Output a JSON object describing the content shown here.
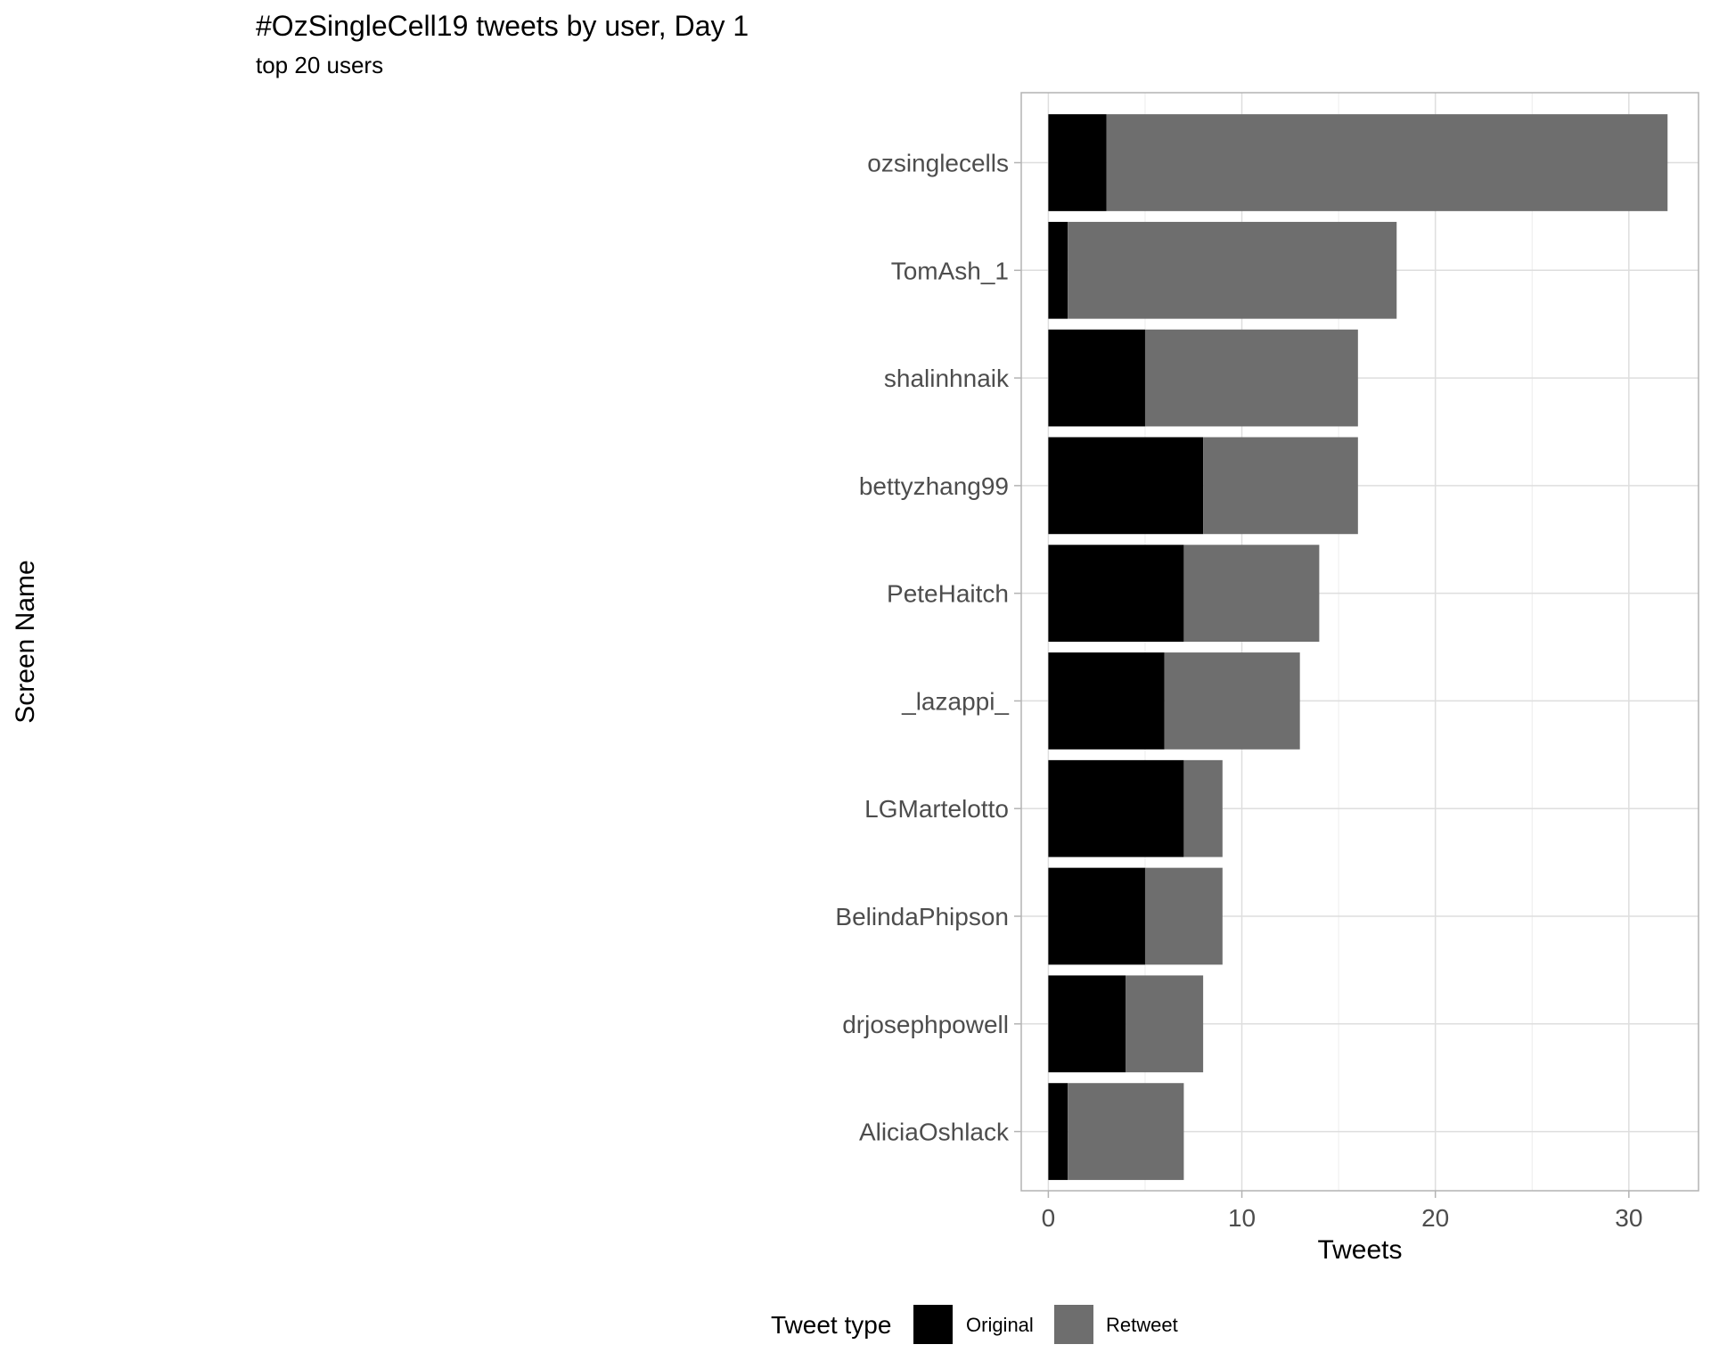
{
  "chart_data": {
    "type": "bar",
    "orientation": "horizontal",
    "stacked": true,
    "title": "#OzSingleCell19 tweets by user, Day 1",
    "subtitle": "top 20 users",
    "xlabel": "Tweets",
    "ylabel": "Screen Name",
    "xlim": [
      -1.4,
      33.6
    ],
    "xticks": [
      0,
      10,
      20,
      30
    ],
    "x_minor_gridlines": [
      5,
      15,
      25
    ],
    "grid": true,
    "categories": [
      "ozsinglecells",
      "TomAsh_1",
      "shalinhnaik",
      "bettyzhang99",
      "PeteHaitch",
      "_lazappi_",
      "LGMartelotto",
      "BelindaPhipson",
      "drjosephpowell",
      "AliciaOshlack"
    ],
    "series": [
      {
        "name": "Original",
        "color": "#000000",
        "values": [
          3,
          1,
          5,
          8,
          7,
          6,
          7,
          5,
          4,
          1
        ]
      },
      {
        "name": "Retweet",
        "color": "#6e6e6e",
        "values": [
          29,
          17,
          11,
          8,
          7,
          7,
          2,
          4,
          4,
          6
        ]
      }
    ],
    "legend": {
      "title": "Tweet type",
      "position": "bottom"
    }
  }
}
